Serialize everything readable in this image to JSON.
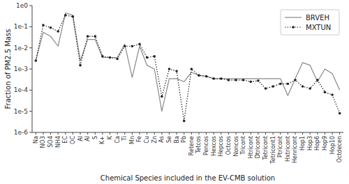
{
  "chart_data": {
    "type": "line",
    "categories": [
      "Na",
      "NO3",
      "SO4",
      "NH4",
      "EC",
      "OC",
      "Al",
      "Al",
      "S",
      "K+",
      "K",
      "Ca",
      "Ti",
      "Mn",
      "Fe",
      "Cu",
      "Zn",
      "As",
      "Se",
      "Ba",
      "Pb",
      "Retene",
      "Tetcos",
      "Pencos",
      "Hexcos",
      "Hepcos",
      "Octcos",
      "Noncos",
      "Tricont",
      "Htricont",
      "Dtricont",
      "Tetricont",
      "Tetricont1",
      "Ptricont",
      "Hxtricont",
      "Henricont",
      "Hop1",
      "Hop3",
      "Hop6",
      "Hop9",
      "Hop10",
      "Octdecen"
    ],
    "series": [
      {
        "name": "BRVEH",
        "color": "#888888",
        "line_style": "solid",
        "marker": "none",
        "values": [
          0.0025,
          0.055,
          0.035,
          0.012,
          0.45,
          0.35,
          0.0025,
          0.025,
          0.025,
          0.0035,
          0.0035,
          0.0035,
          0.015,
          0.0004,
          0.012,
          0.0015,
          0.001,
          1e-05,
          0.00035,
          0.00035,
          0.00025,
          0.0007,
          0.0005,
          0.00045,
          0.00035,
          0.00035,
          0.00035,
          0.00035,
          0.00035,
          0.00035,
          0.00035,
          0.00035,
          0.00035,
          0.00035,
          5.5e-05,
          0.00035,
          0.002,
          0.0015,
          0.00025,
          0.001,
          0.0006,
          0.0001
        ]
      },
      {
        "name": "MXTUN",
        "color": "#222222",
        "line_style": "dotted",
        "marker": "dot",
        "values": [
          0.0025,
          0.12,
          0.09,
          0.06,
          0.35,
          0.3,
          0.0015,
          0.035,
          0.035,
          0.004,
          0.0035,
          0.003,
          0.012,
          0.012,
          0.015,
          0.0035,
          0.004,
          5e-05,
          0.001,
          0.0008,
          3.5e-06,
          0.001,
          0.0005,
          0.00045,
          0.00035,
          0.00035,
          0.0003,
          0.0003,
          0.0003,
          0.00025,
          0.00028,
          0.00012,
          0.00015,
          0.0002,
          0.0002,
          0.0003,
          0.00015,
          0.00012,
          0.0003,
          8e-05,
          6e-05,
          8e-06
        ]
      }
    ],
    "x_label": "Chemical Species included in the EV-CMB solution",
    "y_label": "Fraction of PM2.5 Mass",
    "log": "y",
    "ylim": [
      1e-06,
      1.0
    ],
    "yticks": [
      {
        "value": 1e-06,
        "label": "1e-6"
      },
      {
        "value": 1e-05,
        "label": "1e-5"
      },
      {
        "value": 0.0001,
        "label": "1e-4"
      },
      {
        "value": 0.001,
        "label": "1e-3"
      },
      {
        "value": 0.01,
        "label": "1e-2"
      },
      {
        "value": 0.1,
        "label": "1e-1"
      },
      {
        "value": 1.0,
        "label": "1e0"
      }
    ],
    "grid": false,
    "legend": "upper right"
  }
}
